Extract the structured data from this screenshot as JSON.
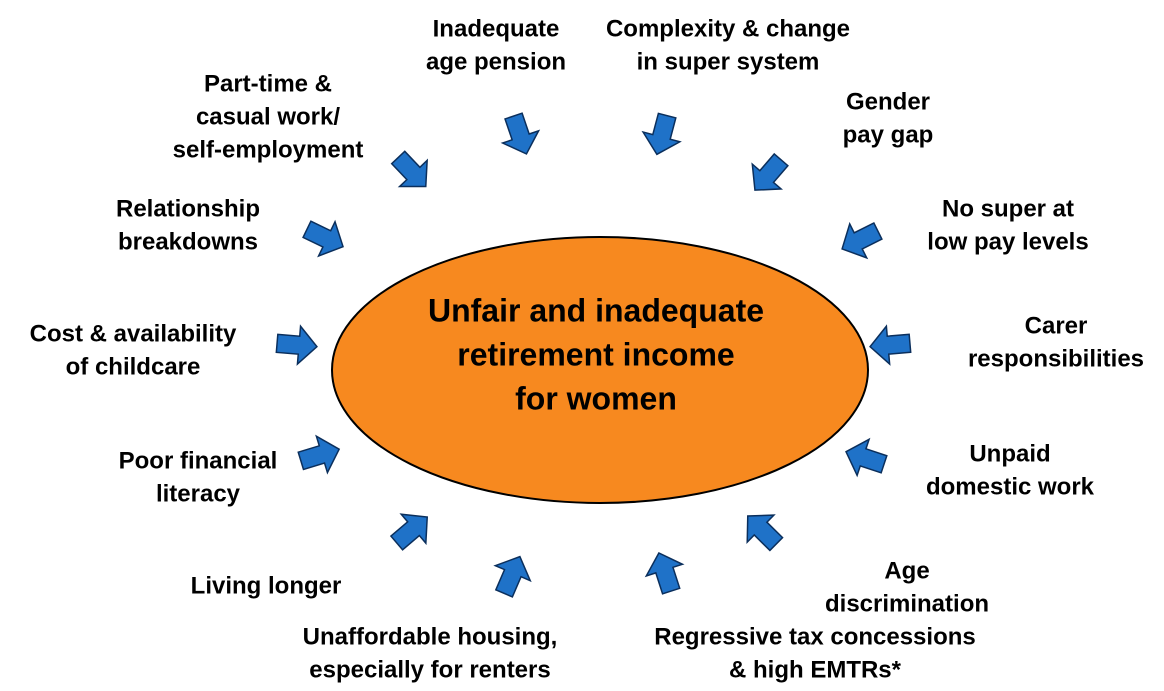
{
  "center": {
    "lines": [
      "Unfair and inadequate",
      "retirement income",
      "for women"
    ]
  },
  "factors": [
    {
      "lines": [
        "Inadequate",
        "age pension"
      ]
    },
    {
      "lines": [
        "Complexity & change",
        "in super system"
      ]
    },
    {
      "lines": [
        "Part-time &",
        "casual work/",
        "self-employment"
      ]
    },
    {
      "lines": [
        "Gender",
        "pay gap"
      ]
    },
    {
      "lines": [
        "Relationship",
        "breakdowns"
      ]
    },
    {
      "lines": [
        "No super at",
        "low pay levels"
      ]
    },
    {
      "lines": [
        "Cost & availability",
        "of childcare"
      ]
    },
    {
      "lines": [
        "Carer",
        "responsibilities"
      ]
    },
    {
      "lines": [
        "Poor financial",
        "literacy"
      ]
    },
    {
      "lines": [
        "Unpaid",
        "domestic work"
      ]
    },
    {
      "lines": [
        "Living longer"
      ]
    },
    {
      "lines": [
        "Age",
        "discrimination"
      ]
    },
    {
      "lines": [
        "Unaffordable housing,",
        "especially for renters"
      ]
    },
    {
      "lines": [
        "Regressive tax concessions",
        "& high EMTRs*"
      ]
    }
  ]
}
